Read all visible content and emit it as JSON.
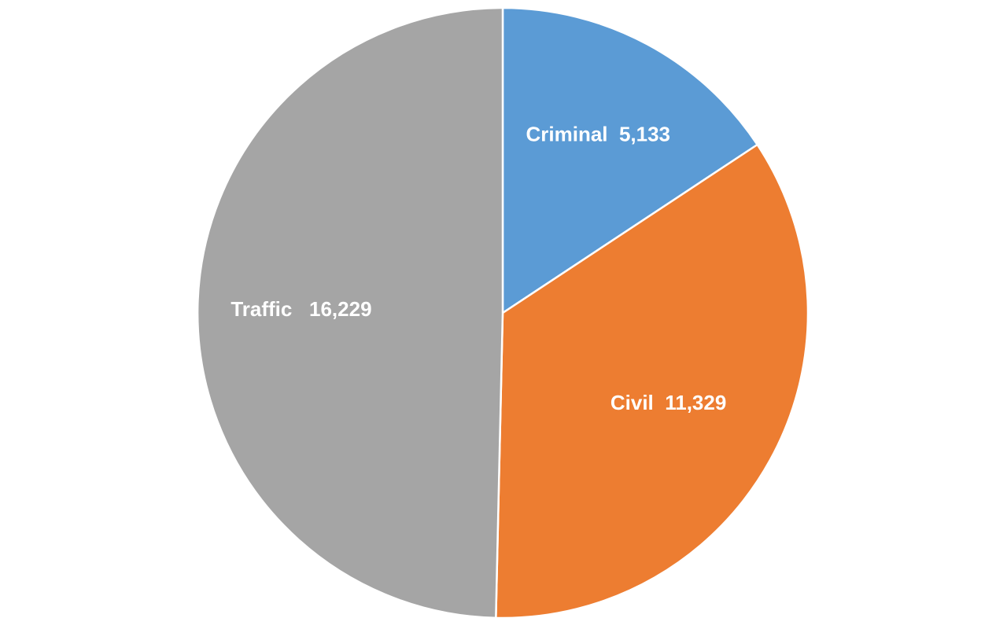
{
  "chart_data": {
    "type": "pie",
    "slices": [
      {
        "label": "Criminal",
        "value": 5133,
        "display": "Criminal  5,133",
        "color": "#5b9bd5"
      },
      {
        "label": "Civil",
        "value": 11329,
        "display": "Civil  11,329",
        "color": "#ed7d31"
      },
      {
        "label": "Traffic",
        "value": 16229,
        "display": "Traffic   16,229",
        "color": "#a5a5a5"
      }
    ],
    "start_angle_deg": 0,
    "direction": "clockwise",
    "legend": "none",
    "data_labels": "inside"
  }
}
